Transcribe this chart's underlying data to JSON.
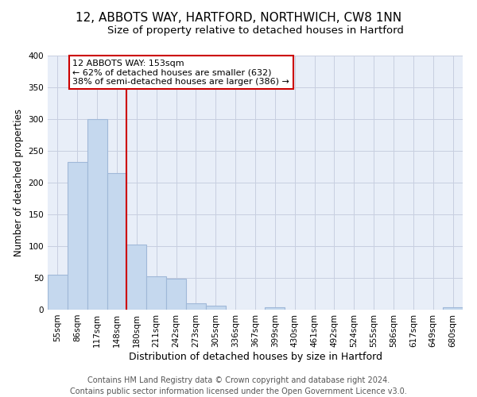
{
  "title": "12, ABBOTS WAY, HARTFORD, NORTHWICH, CW8 1NN",
  "subtitle": "Size of property relative to detached houses in Hartford",
  "xlabel": "Distribution of detached houses by size in Hartford",
  "ylabel": "Number of detached properties",
  "bin_labels": [
    "55sqm",
    "86sqm",
    "117sqm",
    "148sqm",
    "180sqm",
    "211sqm",
    "242sqm",
    "273sqm",
    "305sqm",
    "336sqm",
    "367sqm",
    "399sqm",
    "430sqm",
    "461sqm",
    "492sqm",
    "524sqm",
    "555sqm",
    "586sqm",
    "617sqm",
    "649sqm",
    "680sqm"
  ],
  "bar_heights": [
    55,
    233,
    300,
    215,
    103,
    52,
    49,
    10,
    6,
    0,
    0,
    4,
    0,
    0,
    0,
    0,
    0,
    0,
    0,
    0,
    4
  ],
  "bar_color": "#c5d8ee",
  "bar_edge_color": "#a0b8d8",
  "vline_x_index": 3,
  "vline_color": "#cc0000",
  "ylim": [
    0,
    400
  ],
  "yticks": [
    0,
    50,
    100,
    150,
    200,
    250,
    300,
    350,
    400
  ],
  "annotation_title": "12 ABBOTS WAY: 153sqm",
  "annotation_line1": "← 62% of detached houses are smaller (632)",
  "annotation_line2": "38% of semi-detached houses are larger (386) →",
  "annotation_box_facecolor": "#ffffff",
  "annotation_box_edgecolor": "#cc0000",
  "footer_line1": "Contains HM Land Registry data © Crown copyright and database right 2024.",
  "footer_line2": "Contains public sector information licensed under the Open Government Licence v3.0.",
  "background_color": "#ffffff",
  "plot_bg_color": "#e8eef8",
  "grid_color": "#c8cfe0",
  "title_fontsize": 11,
  "subtitle_fontsize": 9.5,
  "xlabel_fontsize": 9,
  "ylabel_fontsize": 8.5,
  "tick_fontsize": 7.5,
  "annotation_fontsize": 8,
  "footer_fontsize": 7
}
